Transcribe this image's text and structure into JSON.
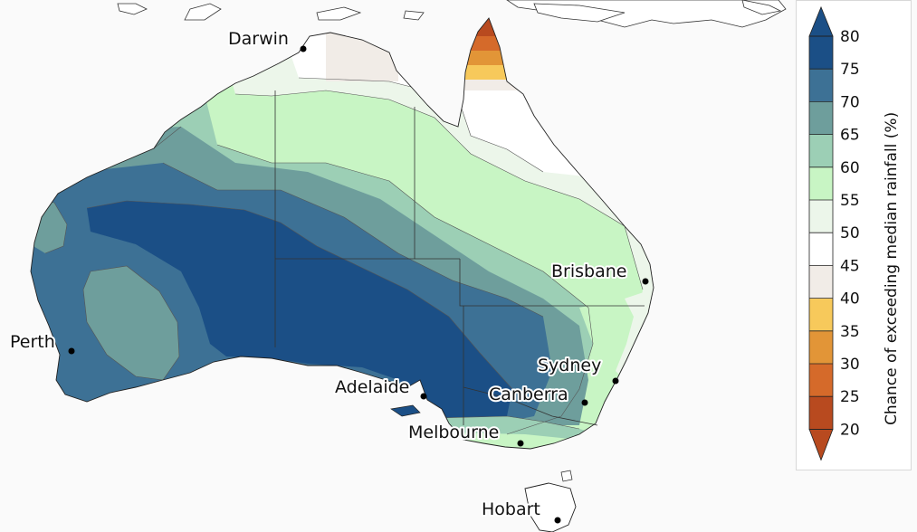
{
  "map": {
    "cities": [
      {
        "id": "darwin",
        "label": "Darwin"
      },
      {
        "id": "brisbane",
        "label": "Brisbane"
      },
      {
        "id": "perth",
        "label": "Perth"
      },
      {
        "id": "sydney",
        "label": "Sydney"
      },
      {
        "id": "adelaide",
        "label": "Adelaide"
      },
      {
        "id": "canberra",
        "label": "Canberra"
      },
      {
        "id": "melbourne",
        "label": "Melbourne"
      },
      {
        "id": "hobart",
        "label": "Hobart"
      }
    ]
  },
  "legend": {
    "title": "Chance of exceeding median rainfall (%)",
    "ticks": [
      "80",
      "75",
      "70",
      "65",
      "60",
      "55",
      "50",
      "45",
      "40",
      "35",
      "30",
      "25",
      "20"
    ],
    "bands": [
      {
        "range": "75-80+",
        "color": "#1b4f86"
      },
      {
        "range": "70-75",
        "color": "#3d7195"
      },
      {
        "range": "65-70",
        "color": "#6e9e9c"
      },
      {
        "range": "60-65",
        "color": "#9ccfb5"
      },
      {
        "range": "55-60",
        "color": "#c8f5c4"
      },
      {
        "range": "50-55",
        "color": "#ecf6ea"
      },
      {
        "range": "45-50",
        "color": "#ffffff"
      },
      {
        "range": "40-45",
        "color": "#f1ece7"
      },
      {
        "range": "35-40",
        "color": "#f7c95b"
      },
      {
        "range": "30-35",
        "color": "#e29537"
      },
      {
        "range": "25-30",
        "color": "#d56a2a"
      },
      {
        "range": "20-25",
        "color": "#b84a1f"
      }
    ]
  }
}
